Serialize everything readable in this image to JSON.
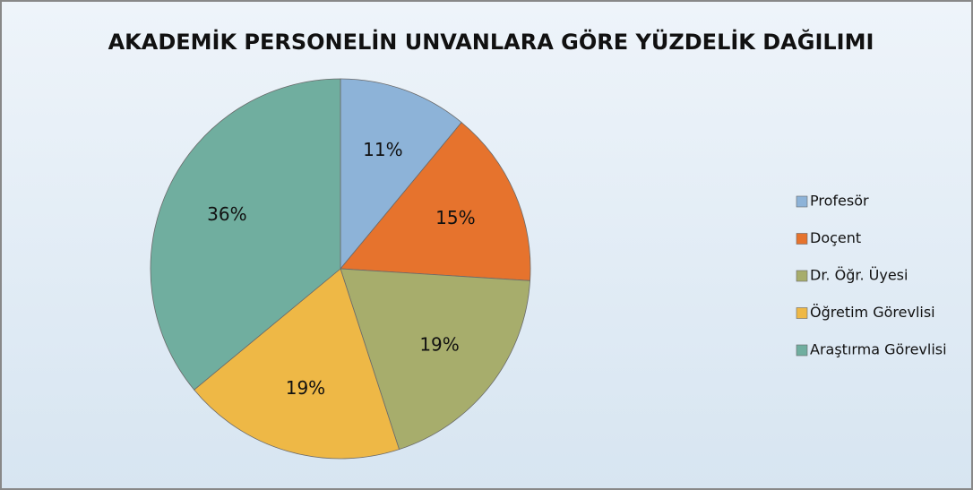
{
  "chart_data": {
    "type": "pie",
    "title": "AKADEMİK PERSONELİN UNVANLARA GÖRE YÜZDELİK DAĞILIMI",
    "categories": [
      "Profesör",
      "Doçent",
      "Dr. Öğr. Üyesi",
      "Öğretim Görevlisi",
      "Araştırma Görevlisi"
    ],
    "values": [
      11,
      15,
      19,
      19,
      36
    ],
    "value_labels": [
      "11%",
      "15%",
      "19%",
      "19%",
      "36%"
    ],
    "colors": [
      "#8db3d8",
      "#e6732d",
      "#a7ad6c",
      "#eeb846",
      "#70ae9f"
    ],
    "legend": "right"
  }
}
